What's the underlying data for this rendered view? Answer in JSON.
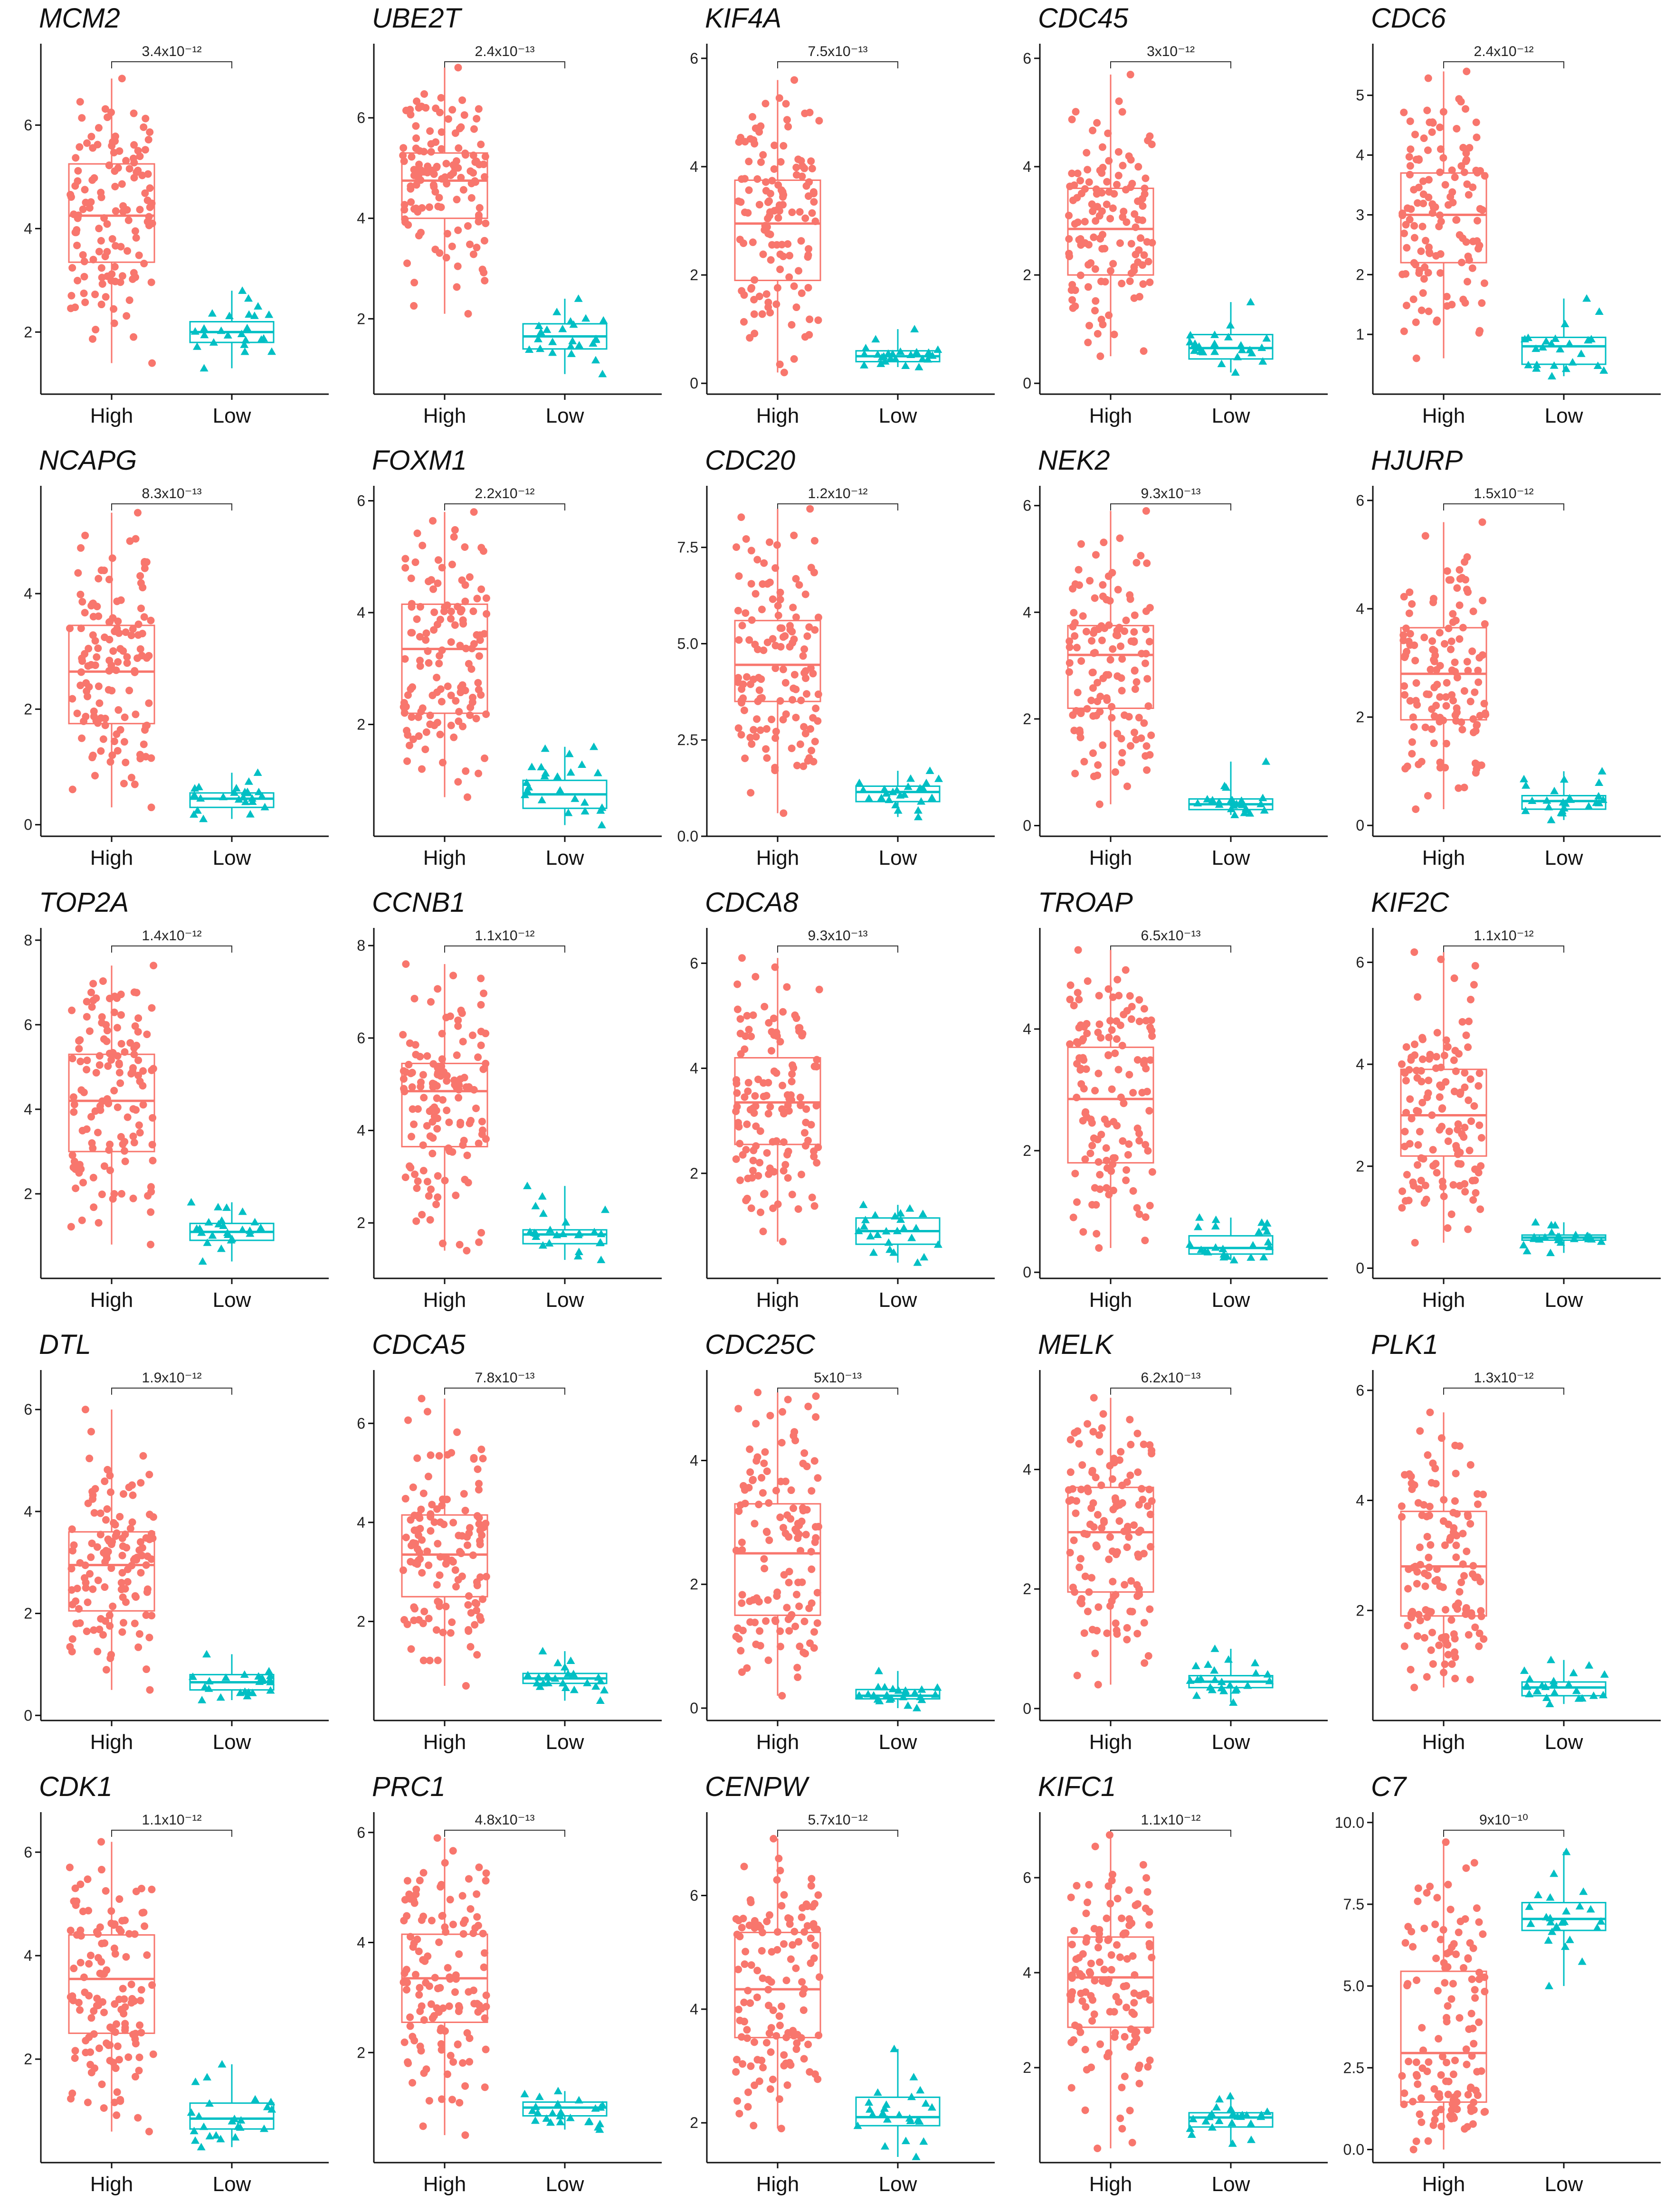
{
  "colors": {
    "high": "#F8766D",
    "low": "#00BFC4",
    "axis": "#111111"
  },
  "chart_data": [
    {
      "type": "box",
      "gene": "MCM2",
      "pvalue": "3.4x10⁻¹²",
      "categories": [
        "High",
        "Low"
      ],
      "yticks": [
        2,
        4,
        6
      ],
      "ylim": [
        0.8,
        7.5
      ],
      "high": {
        "min": 1.4,
        "q1": 3.35,
        "median": 4.25,
        "q3": 5.25,
        "max": 6.9
      },
      "low": {
        "min": 1.3,
        "q1": 1.8,
        "median": 2.0,
        "q3": 2.2,
        "max": 2.8
      }
    },
    {
      "type": "box",
      "gene": "UBE2T",
      "pvalue": "2.4x10⁻¹³",
      "categories": [
        "High",
        "Low"
      ],
      "yticks": [
        2,
        4,
        6
      ],
      "ylim": [
        0.5,
        7.4
      ],
      "high": {
        "min": 2.1,
        "q1": 4.0,
        "median": 4.75,
        "q3": 5.3,
        "max": 7.0
      },
      "low": {
        "min": 0.9,
        "q1": 1.4,
        "median": 1.65,
        "q3": 1.9,
        "max": 2.4
      }
    },
    {
      "type": "box",
      "gene": "KIF4A",
      "pvalue": "7.5x10⁻¹³",
      "categories": [
        "High",
        "Low"
      ],
      "yticks": [
        0,
        2,
        4,
        6
      ],
      "ylim": [
        -0.2,
        6.2
      ],
      "high": {
        "min": 0.2,
        "q1": 1.9,
        "median": 2.95,
        "q3": 3.75,
        "max": 5.6
      },
      "low": {
        "min": 0.3,
        "q1": 0.4,
        "median": 0.5,
        "q3": 0.6,
        "max": 1.0
      }
    },
    {
      "type": "box",
      "gene": "CDC45",
      "pvalue": "3x10⁻¹²",
      "categories": [
        "High",
        "Low"
      ],
      "yticks": [
        0,
        2,
        4,
        6
      ],
      "ylim": [
        -0.2,
        6.2
      ],
      "high": {
        "min": 0.5,
        "q1": 2.0,
        "median": 2.85,
        "q3": 3.6,
        "max": 5.7
      },
      "low": {
        "min": 0.2,
        "q1": 0.45,
        "median": 0.65,
        "q3": 0.9,
        "max": 1.5
      }
    },
    {
      "type": "box",
      "gene": "CDC6",
      "pvalue": "2.4x10⁻¹²",
      "categories": [
        "High",
        "Low"
      ],
      "yticks": [
        1,
        2,
        3,
        4,
        5
      ],
      "ylim": [
        0.0,
        5.8
      ],
      "high": {
        "min": 0.6,
        "q1": 2.2,
        "median": 3.0,
        "q3": 3.7,
        "max": 5.4
      },
      "low": {
        "min": 0.3,
        "q1": 0.5,
        "median": 0.8,
        "q3": 0.95,
        "max": 1.6
      }
    },
    {
      "type": "box",
      "gene": "NCAPG",
      "pvalue": "8.3x10⁻¹³",
      "categories": [
        "High",
        "Low"
      ],
      "yticks": [
        0,
        2,
        4
      ],
      "ylim": [
        -0.2,
        5.8
      ],
      "high": {
        "min": 0.3,
        "q1": 1.75,
        "median": 2.65,
        "q3": 3.45,
        "max": 5.4
      },
      "low": {
        "min": 0.1,
        "q1": 0.3,
        "median": 0.45,
        "q3": 0.55,
        "max": 0.9
      }
    },
    {
      "type": "box",
      "gene": "FOXM1",
      "pvalue": "2.2x10⁻¹²",
      "categories": [
        "High",
        "Low"
      ],
      "yticks": [
        2,
        4,
        6
      ],
      "ylim": [
        0.0,
        6.2
      ],
      "high": {
        "min": 0.7,
        "q1": 2.2,
        "median": 3.35,
        "q3": 4.15,
        "max": 5.8
      },
      "low": {
        "min": 0.2,
        "q1": 0.5,
        "median": 0.75,
        "q3": 1.0,
        "max": 1.6
      }
    },
    {
      "type": "box",
      "gene": "CDC20",
      "pvalue": "1.2x10⁻¹²",
      "categories": [
        "High",
        "Low"
      ],
      "yticks": [
        0.0,
        2.5,
        5.0,
        7.5
      ],
      "ylim": [
        0.0,
        9.0
      ],
      "high": {
        "min": 0.6,
        "q1": 3.5,
        "median": 4.45,
        "q3": 5.6,
        "max": 8.5
      },
      "low": {
        "min": 0.5,
        "q1": 0.9,
        "median": 1.15,
        "q3": 1.3,
        "max": 1.7
      }
    },
    {
      "type": "box",
      "gene": "NEK2",
      "pvalue": "9.3x10⁻¹³",
      "categories": [
        "High",
        "Low"
      ],
      "yticks": [
        0,
        2,
        4,
        6
      ],
      "ylim": [
        -0.2,
        6.3
      ],
      "high": {
        "min": 0.4,
        "q1": 2.2,
        "median": 3.2,
        "q3": 3.75,
        "max": 5.9
      },
      "low": {
        "min": 0.2,
        "q1": 0.3,
        "median": 0.4,
        "q3": 0.5,
        "max": 1.2
      }
    },
    {
      "type": "box",
      "gene": "HJURP",
      "pvalue": "1.5x10⁻¹²",
      "categories": [
        "High",
        "Low"
      ],
      "yticks": [
        0,
        2,
        4,
        6
      ],
      "ylim": [
        -0.2,
        6.2
      ],
      "high": {
        "min": 0.3,
        "q1": 1.95,
        "median": 2.8,
        "q3": 3.65,
        "max": 5.6
      },
      "low": {
        "min": 0.1,
        "q1": 0.3,
        "median": 0.45,
        "q3": 0.55,
        "max": 1.0
      }
    },
    {
      "type": "box",
      "gene": "TOP2A",
      "pvalue": "1.4x10⁻¹²",
      "categories": [
        "High",
        "Low"
      ],
      "yticks": [
        2,
        4,
        6,
        8
      ],
      "ylim": [
        0.0,
        8.2
      ],
      "high": {
        "min": 0.8,
        "q1": 3.0,
        "median": 4.2,
        "q3": 5.3,
        "max": 7.4
      },
      "low": {
        "min": 0.4,
        "q1": 0.9,
        "median": 1.1,
        "q3": 1.3,
        "max": 1.8
      }
    },
    {
      "type": "box",
      "gene": "CCNB1",
      "pvalue": "1.1x10⁻¹²",
      "categories": [
        "High",
        "Low"
      ],
      "yticks": [
        2,
        4,
        6,
        8
      ],
      "ylim": [
        0.8,
        8.3
      ],
      "high": {
        "min": 1.4,
        "q1": 3.65,
        "median": 4.85,
        "q3": 5.45,
        "max": 7.6
      },
      "low": {
        "min": 1.2,
        "q1": 1.55,
        "median": 1.75,
        "q3": 1.85,
        "max": 2.8
      }
    },
    {
      "type": "box",
      "gene": "CDCA8",
      "pvalue": "9.3x10⁻¹³",
      "categories": [
        "High",
        "Low"
      ],
      "yticks": [
        2,
        4,
        6
      ],
      "ylim": [
        0.0,
        6.6
      ],
      "high": {
        "min": 0.7,
        "q1": 2.55,
        "median": 3.35,
        "q3": 4.2,
        "max": 6.1
      },
      "low": {
        "min": 0.3,
        "q1": 0.65,
        "median": 0.9,
        "q3": 1.15,
        "max": 1.4
      }
    },
    {
      "type": "box",
      "gene": "TROAP",
      "pvalue": "6.5x10⁻¹³",
      "categories": [
        "High",
        "Low"
      ],
      "yticks": [
        0,
        2,
        4
      ],
      "ylim": [
        -0.1,
        5.6
      ],
      "high": {
        "min": 0.4,
        "q1": 1.8,
        "median": 2.85,
        "q3": 3.7,
        "max": 5.3
      },
      "low": {
        "min": 0.2,
        "q1": 0.3,
        "median": 0.4,
        "q3": 0.6,
        "max": 0.9
      }
    },
    {
      "type": "box",
      "gene": "KIF2C",
      "pvalue": "1.1x10⁻¹²",
      "categories": [
        "High",
        "Low"
      ],
      "yticks": [
        0,
        2,
        4,
        6
      ],
      "ylim": [
        -0.2,
        6.6
      ],
      "high": {
        "min": 0.5,
        "q1": 2.2,
        "median": 3.0,
        "q3": 3.9,
        "max": 6.2
      },
      "low": {
        "min": 0.3,
        "q1": 0.55,
        "median": 0.6,
        "q3": 0.65,
        "max": 0.9
      }
    },
    {
      "type": "box",
      "gene": "DTL",
      "pvalue": "1.9x10⁻¹²",
      "categories": [
        "High",
        "Low"
      ],
      "yticks": [
        0,
        2,
        4,
        6
      ],
      "ylim": [
        -0.1,
        6.7
      ],
      "high": {
        "min": 0.5,
        "q1": 2.05,
        "median": 2.95,
        "q3": 3.6,
        "max": 6.0
      },
      "low": {
        "min": 0.3,
        "q1": 0.5,
        "median": 0.65,
        "q3": 0.8,
        "max": 1.2
      }
    },
    {
      "type": "box",
      "gene": "CDCA5",
      "pvalue": "7.8x10⁻¹³",
      "categories": [
        "High",
        "Low"
      ],
      "yticks": [
        2,
        4,
        6
      ],
      "ylim": [
        0.0,
        7.0
      ],
      "high": {
        "min": 0.7,
        "q1": 2.5,
        "median": 3.35,
        "q3": 4.15,
        "max": 6.5
      },
      "low": {
        "min": 0.4,
        "q1": 0.75,
        "median": 0.85,
        "q3": 0.95,
        "max": 1.4
      }
    },
    {
      "type": "box",
      "gene": "CDC25C",
      "pvalue": "5x10⁻¹³",
      "categories": [
        "High",
        "Low"
      ],
      "yticks": [
        0,
        2,
        4
      ],
      "ylim": [
        -0.2,
        5.4
      ],
      "high": {
        "min": 0.2,
        "q1": 1.5,
        "median": 2.5,
        "q3": 3.3,
        "max": 5.1
      },
      "low": {
        "min": 0.0,
        "q1": 0.15,
        "median": 0.2,
        "q3": 0.3,
        "max": 0.6
      }
    },
    {
      "type": "box",
      "gene": "MELK",
      "pvalue": "6.2x10⁻¹³",
      "categories": [
        "High",
        "Low"
      ],
      "yticks": [
        0,
        2,
        4
      ],
      "ylim": [
        -0.2,
        5.6
      ],
      "high": {
        "min": 0.4,
        "q1": 1.95,
        "median": 2.95,
        "q3": 3.7,
        "max": 5.2
      },
      "low": {
        "min": 0.1,
        "q1": 0.35,
        "median": 0.45,
        "q3": 0.55,
        "max": 1.0
      }
    },
    {
      "type": "box",
      "gene": "PLK1",
      "pvalue": "1.3x10⁻¹²",
      "categories": [
        "High",
        "Low"
      ],
      "yticks": [
        2,
        4,
        6
      ],
      "ylim": [
        0.0,
        6.3
      ],
      "high": {
        "min": 0.6,
        "q1": 1.9,
        "median": 2.8,
        "q3": 3.8,
        "max": 5.6
      },
      "low": {
        "min": 0.3,
        "q1": 0.45,
        "median": 0.6,
        "q3": 0.7,
        "max": 1.1
      }
    },
    {
      "type": "box",
      "gene": "CDK1",
      "pvalue": "1.1x10⁻¹²",
      "categories": [
        "High",
        "Low"
      ],
      "yticks": [
        2,
        4,
        6
      ],
      "ylim": [
        0.0,
        6.7
      ],
      "high": {
        "min": 0.6,
        "q1": 2.5,
        "median": 3.55,
        "q3": 4.4,
        "max": 6.2
      },
      "low": {
        "min": 0.3,
        "q1": 0.65,
        "median": 0.85,
        "q3": 1.15,
        "max": 1.9
      }
    },
    {
      "type": "box",
      "gene": "PRC1",
      "pvalue": "4.8x10⁻¹³",
      "categories": [
        "High",
        "Low"
      ],
      "yticks": [
        2,
        4,
        6
      ],
      "ylim": [
        0.0,
        6.3
      ],
      "high": {
        "min": 0.5,
        "q1": 2.55,
        "median": 3.35,
        "q3": 4.15,
        "max": 5.9
      },
      "low": {
        "min": 0.6,
        "q1": 0.85,
        "median": 1.0,
        "q3": 1.1,
        "max": 1.3
      }
    },
    {
      "type": "box",
      "gene": "CENPW",
      "pvalue": "5.7x10⁻¹²",
      "categories": [
        "High",
        "Low"
      ],
      "yticks": [
        2,
        4,
        6
      ],
      "ylim": [
        1.3,
        7.4
      ],
      "high": {
        "min": 1.9,
        "q1": 3.5,
        "median": 4.35,
        "q3": 5.35,
        "max": 7.0
      },
      "low": {
        "min": 1.4,
        "q1": 1.95,
        "median": 2.1,
        "q3": 2.45,
        "max": 3.3
      }
    },
    {
      "type": "box",
      "gene": "KIFC1",
      "pvalue": "1.1x10⁻¹²",
      "categories": [
        "High",
        "Low"
      ],
      "yticks": [
        2,
        4,
        6
      ],
      "ylim": [
        0.0,
        7.3
      ],
      "high": {
        "min": 0.3,
        "q1": 2.85,
        "median": 3.9,
        "q3": 4.75,
        "max": 6.9
      },
      "low": {
        "min": 0.4,
        "q1": 0.75,
        "median": 0.95,
        "q3": 1.05,
        "max": 1.4
      }
    },
    {
      "type": "box",
      "gene": "C7",
      "pvalue": "9x10⁻¹⁰",
      "categories": [
        "High",
        "Low"
      ],
      "yticks": [
        0.0,
        2.5,
        5.0,
        7.5,
        10.0
      ],
      "ylim": [
        -0.4,
        10.2
      ],
      "high": {
        "min": 0.0,
        "q1": 1.45,
        "median": 2.95,
        "q3": 5.45,
        "max": 9.4
      },
      "low": {
        "min": 5.0,
        "q1": 6.7,
        "median": 7.05,
        "q3": 7.55,
        "max": 9.1
      }
    }
  ]
}
